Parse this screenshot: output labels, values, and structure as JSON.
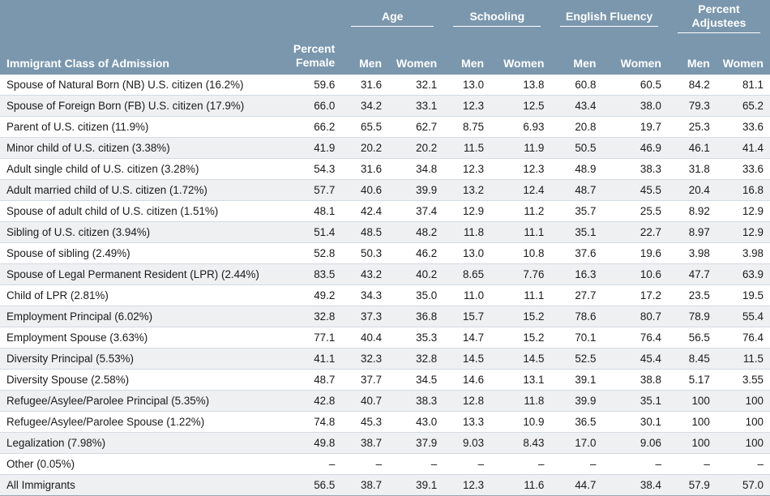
{
  "header": {
    "stub_label": "Immigrant Class of Admission",
    "percent_female": "Percent Female",
    "groups": [
      {
        "label": "Age"
      },
      {
        "label": "Schooling"
      },
      {
        "label": "English Fluency"
      },
      {
        "label": "Percent Adjustees"
      }
    ],
    "men": "Men",
    "women": "Women"
  },
  "rows": [
    {
      "label": "Spouse of Natural Born (NB) U.S. citizen (16.2%)",
      "values": [
        "59.6",
        "31.6",
        "32.1",
        "13.0",
        "13.8",
        "60.8",
        "60.5",
        "84.2",
        "81.1"
      ]
    },
    {
      "label": "Spouse of Foreign Born (FB) U.S. citizen (17.9%)",
      "values": [
        "66.0",
        "34.2",
        "33.1",
        "12.3",
        "12.5",
        "43.4",
        "38.0",
        "79.3",
        "65.2"
      ]
    },
    {
      "label": "Parent of U.S. citizen (11.9%)",
      "values": [
        "66.2",
        "65.5",
        "62.7",
        "8.75",
        "6.93",
        "20.8",
        "19.7",
        "25.3",
        "33.6"
      ]
    },
    {
      "label": "Minor child of U.S. citizen (3.38%)",
      "values": [
        "41.9",
        "20.2",
        "20.2",
        "11.5",
        "11.9",
        "50.5",
        "46.9",
        "46.1",
        "41.4"
      ]
    },
    {
      "label": "Adult single child of U.S. citizen (3.28%)",
      "values": [
        "54.3",
        "31.6",
        "34.8",
        "12.3",
        "12.3",
        "48.9",
        "38.3",
        "31.8",
        "33.6"
      ]
    },
    {
      "label": "Adult married child of U.S. citizen (1.72%)",
      "values": [
        "57.7",
        "40.6",
        "39.9",
        "13.2",
        "12.4",
        "48.7",
        "45.5",
        "20.4",
        "16.8"
      ]
    },
    {
      "label": "Spouse of adult child of U.S. citizen (1.51%)",
      "values": [
        "48.1",
        "42.4",
        "37.4",
        "12.9",
        "11.2",
        "35.7",
        "25.5",
        "8.92",
        "12.9"
      ]
    },
    {
      "label": "Sibling of U.S. citizen (3.94%)",
      "values": [
        "51.4",
        "48.5",
        "48.2",
        "11.8",
        "11.1",
        "35.1",
        "22.7",
        "8.97",
        "12.9"
      ]
    },
    {
      "label": "Spouse of sibling (2.49%)",
      "values": [
        "52.8",
        "50.3",
        "46.2",
        "13.0",
        "10.8",
        "37.6",
        "19.6",
        "3.98",
        "3.98"
      ]
    },
    {
      "label": "Spouse of Legal Permanent Resident (LPR) (2.44%)",
      "values": [
        "83.5",
        "43.2",
        "40.2",
        "8.65",
        "7.76",
        "16.3",
        "10.6",
        "47.7",
        "63.9"
      ]
    },
    {
      "label": "Child of LPR (2.81%)",
      "values": [
        "49.2",
        "34.3",
        "35.0",
        "11.0",
        "11.1",
        "27.7",
        "17.2",
        "23.5",
        "19.5"
      ]
    },
    {
      "label": "Employment Principal (6.02%)",
      "values": [
        "32.8",
        "37.3",
        "36.8",
        "15.7",
        "15.2",
        "78.6",
        "80.7",
        "78.9",
        "55.4"
      ]
    },
    {
      "label": "Employment Spouse (3.63%)",
      "values": [
        "77.1",
        "40.4",
        "35.3",
        "14.7",
        "15.2",
        "70.1",
        "76.4",
        "56.5",
        "76.4"
      ]
    },
    {
      "label": "Diversity Principal (5.53%)",
      "values": [
        "41.1",
        "32.3",
        "32.8",
        "14.5",
        "14.5",
        "52.5",
        "45.4",
        "8.45",
        "11.5"
      ]
    },
    {
      "label": "Diversity Spouse (2.58%)",
      "values": [
        "48.7",
        "37.7",
        "34.5",
        "14.6",
        "13.1",
        "39.1",
        "38.8",
        "5.17",
        "3.55"
      ]
    },
    {
      "label": "Refugee/Asylee/Parolee Principal (5.35%)",
      "values": [
        "42.8",
        "40.7",
        "38.3",
        "12.8",
        "11.8",
        "39.9",
        "35.1",
        "100",
        "100"
      ]
    },
    {
      "label": "Refugee/Asylee/Parolee Spouse (1.22%)",
      "values": [
        "74.8",
        "45.3",
        "43.0",
        "13.3",
        "10.9",
        "36.5",
        "30.1",
        "100",
        "100"
      ]
    },
    {
      "label": "Legalization (7.98%)",
      "values": [
        "49.8",
        "38.7",
        "37.9",
        "9.03",
        "8.43",
        "17.0",
        "9.06",
        "100",
        "100"
      ]
    },
    {
      "label": "Other (0.05%)",
      "values": [
        "–",
        "–",
        "–",
        "–",
        "–",
        "–",
        "–",
        "–",
        "–"
      ]
    },
    {
      "label": "All Immigrants",
      "values": [
        "56.5",
        "38.7",
        "39.1",
        "12.3",
        "11.6",
        "44.7",
        "38.4",
        "57.9",
        "57.0"
      ]
    }
  ],
  "colors": {
    "header_bg": "#7a97ae",
    "row_alt_bg": "#eef0f2"
  }
}
